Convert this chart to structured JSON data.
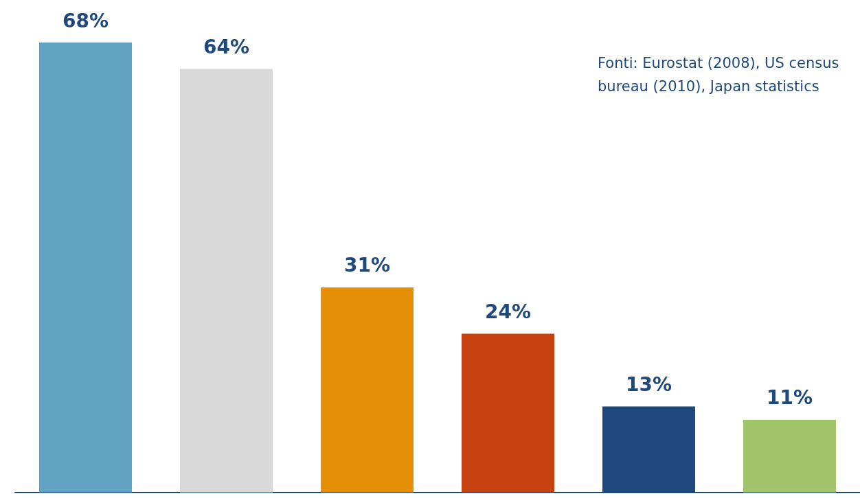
{
  "chart_data": {
    "type": "bar",
    "categories": [
      null,
      null,
      null,
      null,
      null,
      null
    ],
    "values": [
      68,
      64,
      31,
      24,
      13,
      11
    ],
    "colors": [
      "#62a3c3",
      "#d9d9d9",
      "#e68e06",
      "#c84211",
      "#1f497d",
      "#a2c46b"
    ],
    "value_labels": [
      "68%",
      "64%",
      "31%",
      "24%",
      "13%",
      "11%"
    ],
    "annotations": [
      "Fonti: Eurostat (2008), US census bureau (2010), Japan statistics"
    ],
    "grid": false
  }
}
